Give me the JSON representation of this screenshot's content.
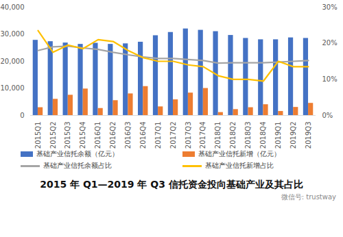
{
  "chart_data": {
    "type": "bar",
    "title": "2015 年 Q1—2019 年 Q3 信托资金投向基础产业及其占比",
    "watermark": "微信号: trustway",
    "categories": [
      "2015Q1",
      "2015Q2",
      "2015Q3",
      "2015Q4",
      "2016Q1",
      "2016Q2",
      "2016Q3",
      "2016Q4",
      "2017Q1",
      "2017Q2",
      "2017Q3",
      "2017Q4",
      "2018Q1",
      "2018Q2",
      "2018Q3",
      "2018Q4",
      "2019Q1",
      "2019Q2",
      "2019Q3"
    ],
    "series": [
      {
        "name": "基础产业信托余额（亿元）",
        "type": "bar",
        "color": "#4472C4",
        "values": [
          27800,
          27300,
          26800,
          26300,
          26700,
          26300,
          26500,
          27100,
          29500,
          30700,
          32000,
          31500,
          31000,
          29600,
          28500,
          28000,
          28000,
          28700,
          28500
        ]
      },
      {
        "name": "基础产业信托新增（亿元）",
        "type": "bar",
        "color": "#ED7D31",
        "values": [
          2900,
          6000,
          7500,
          9800,
          2600,
          5500,
          8000,
          10700,
          3200,
          5800,
          8300,
          10000,
          1100,
          2200,
          2900,
          4000,
          1500,
          3000,
          4500
        ]
      },
      {
        "name": "基础产业信托余额占比",
        "type": "line",
        "axis": "y2",
        "color": "#A5A5A5",
        "values": [
          18.0,
          19.0,
          19.2,
          18.7,
          18.3,
          17.5,
          16.8,
          16.2,
          15.8,
          15.8,
          15.5,
          15.2,
          14.5,
          14.6,
          14.6,
          14.6,
          14.8,
          15.0,
          15.2
        ]
      },
      {
        "name": "基础产业信托新增占比",
        "type": "line",
        "axis": "y2",
        "color": "#FFC000",
        "values": [
          23.5,
          17.5,
          19.5,
          18.5,
          21.0,
          20.5,
          18.0,
          16.0,
          15.0,
          15.0,
          14.0,
          13.5,
          11.0,
          10.0,
          10.0,
          9.5,
          15.0,
          13.5,
          13.5
        ]
      }
    ],
    "ylim": [
      0,
      40000
    ],
    "yticks": [
      0,
      {
        "value": 10000,
        "label": "10,000"
      },
      {
        "value": 20000,
        "label": "20,000"
      },
      {
        "value": 30000,
        "label": "30,000"
      },
      {
        "value": 40000,
        "label": "40,000"
      }
    ],
    "y2lim": [
      0,
      30
    ],
    "y2ticks": [
      {
        "value": 0,
        "label": "0%"
      },
      {
        "value": 10,
        "label": "10%"
      },
      {
        "value": 20,
        "label": "20%"
      },
      {
        "value": 30,
        "label": "30%"
      }
    ],
    "grid": false,
    "legend": "bottom"
  }
}
